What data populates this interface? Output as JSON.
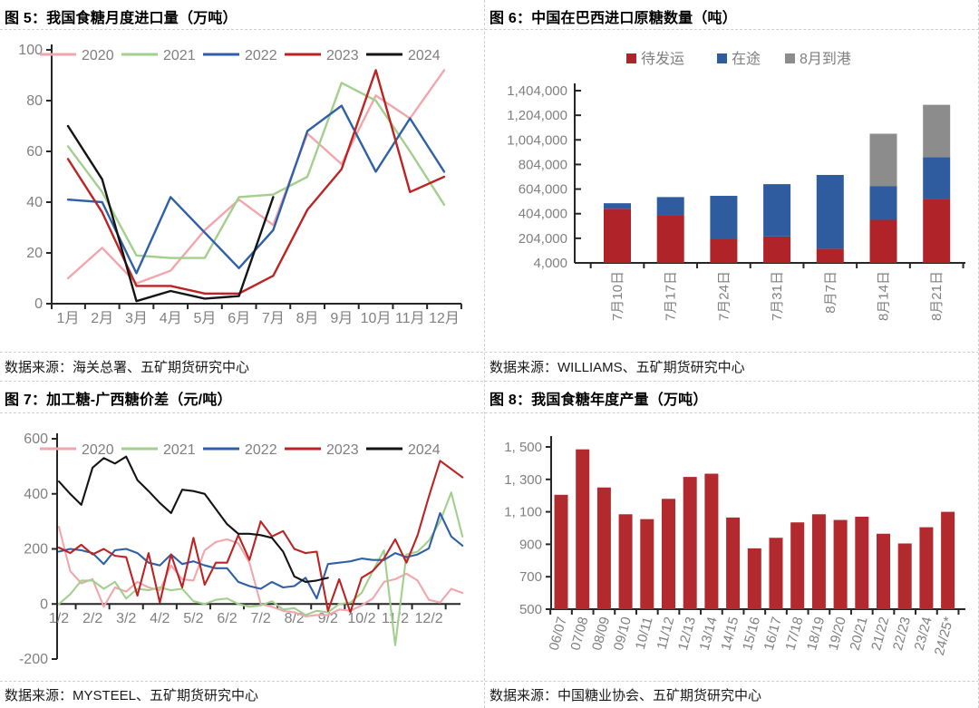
{
  "chart_data": [
    {
      "id": "fig5",
      "type": "line",
      "title": "图 5：我国食糖月度进口量（万吨）",
      "source": "数据来源：海关总署、五矿期货研究中心",
      "categories": [
        "1月",
        "2月",
        "3月",
        "4月",
        "5月",
        "6月",
        "7月",
        "8月",
        "9月",
        "10月",
        "11月",
        "12月"
      ],
      "ytick_values": [
        0,
        20,
        40,
        60,
        80,
        100
      ],
      "ytick_labels": [
        "0",
        "20",
        "40",
        "60",
        "80",
        "100"
      ],
      "ylim": [
        0,
        100
      ],
      "legend_position": "top",
      "grid": "off",
      "series": [
        {
          "name": "2020",
          "color": "#F2A6AC",
          "values": [
            10,
            22,
            8,
            13,
            29,
            41,
            31,
            67,
            55,
            82,
            73,
            92
          ]
        },
        {
          "name": "2021",
          "color": "#A2CF8E",
          "values": [
            62,
            44,
            19,
            18,
            18,
            42,
            43,
            50,
            87,
            80,
            60,
            39
          ]
        },
        {
          "name": "2022",
          "color": "#2F5FA7",
          "values": [
            41,
            40,
            12,
            42,
            28,
            14,
            29,
            68,
            78,
            52,
            73,
            52
          ]
        },
        {
          "name": "2023",
          "color": "#BB2423",
          "values": [
            57,
            36,
            7,
            7,
            4,
            4,
            11,
            37,
            53,
            92,
            44,
            50
          ]
        },
        {
          "name": "2024",
          "color": "#141414",
          "values": [
            70,
            49,
            1,
            5,
            2,
            3,
            42
          ]
        }
      ]
    },
    {
      "id": "fig6",
      "type": "stacked-bar",
      "title": "图 6：中国在巴西进口原糖数量（吨）",
      "source": "数据来源：WILLIAMS、五矿期货研究中心",
      "categories": [
        "7月10日",
        "7月17日",
        "7月24日",
        "7月31日",
        "8月7日",
        "8月14日",
        "8月21日"
      ],
      "ytick_values": [
        4000,
        204000,
        404000,
        604000,
        804000,
        1004000,
        1204000,
        1404000
      ],
      "ytick_labels": [
        "4,000",
        "204,000",
        "404,000",
        "604,000",
        "804,000",
        "1,004,000",
        "1,204,000",
        "1,404,000"
      ],
      "ylim": [
        4000,
        1404000
      ],
      "legend_position": "top",
      "grid": "off",
      "series": [
        {
          "name": "待发运",
          "color": "#B02328",
          "values": [
            440000,
            390000,
            195000,
            215000,
            115000,
            350000,
            520000
          ]
        },
        {
          "name": "在途",
          "color": "#2F5B9F",
          "values": [
            45000,
            145000,
            350000,
            425000,
            600000,
            275000,
            340000
          ]
        },
        {
          "name": "8月到港",
          "color": "#8C8C8C",
          "values": [
            0,
            0,
            0,
            0,
            0,
            425000,
            425000
          ]
        }
      ]
    },
    {
      "id": "fig7",
      "type": "line",
      "title": "图 7：加工糖-广西糖价差（元/吨）",
      "source": "数据来源：MYSTEEL、五矿期货研究中心",
      "categories": [
        "1/2",
        "2/2",
        "3/2",
        "4/2",
        "5/2",
        "6/2",
        "7/2",
        "8/2",
        "9/2",
        "10/2",
        "11/2",
        "12/2"
      ],
      "ytick_values": [
        -200,
        0,
        200,
        400,
        600
      ],
      "ytick_labels": [
        "-200",
        "0",
        "200",
        "400",
        "600"
      ],
      "ylim": [
        -200,
        600
      ],
      "points_per_month": 3,
      "legend_position": "top",
      "grid": "off",
      "series": [
        {
          "name": "2020",
          "color": "#F2A6AC",
          "values": [
            280,
            120,
            75,
            90,
            -10,
            60,
            45,
            80,
            60,
            50,
            140,
            90,
            85,
            195,
            225,
            235,
            220,
            150,
            0,
            -10,
            -25,
            -30,
            -45,
            -40,
            -40,
            -20,
            -25,
            -5,
            20,
            80,
            90,
            110,
            85,
            15,
            5,
            55,
            40
          ]
        },
        {
          "name": "2021",
          "color": "#A2CF8E",
          "values": [
            0,
            35,
            85,
            85,
            55,
            80,
            20,
            55,
            50,
            60,
            50,
            55,
            10,
            0,
            15,
            20,
            0,
            -10,
            -5,
            10,
            -20,
            -15,
            -40,
            -25,
            -30,
            0,
            5,
            40,
            120,
            195,
            -150,
            180,
            190,
            230,
            300,
            405,
            245
          ]
        },
        {
          "name": "2022",
          "color": "#2F5FA7",
          "values": [
            190,
            200,
            195,
            185,
            145,
            195,
            200,
            185,
            150,
            140,
            180,
            145,
            155,
            140,
            130,
            130,
            80,
            65,
            55,
            80,
            60,
            65,
            95,
            20,
            145,
            150,
            155,
            165,
            160,
            160,
            185,
            170,
            180,
            202,
            330,
            245,
            212
          ]
        },
        {
          "name": "2023",
          "color": "#BB2423",
          "values": [
            205,
            185,
            215,
            180,
            200,
            175,
            170,
            30,
            185,
            5,
            180,
            60,
            240,
            70,
            150,
            150,
            250,
            160,
            300,
            245,
            265,
            200,
            185,
            190,
            -25,
            90,
            -30,
            95,
            120,
            165,
            235,
            150,
            250,
            390,
            520,
            490,
            460
          ]
        },
        {
          "name": "2024",
          "color": "#141414",
          "values": [
            445,
            400,
            360,
            495,
            530,
            510,
            535,
            450,
            410,
            367,
            330,
            415,
            410,
            400,
            345,
            290,
            255,
            255,
            250,
            240,
            190,
            100,
            80,
            85,
            95
          ]
        }
      ]
    },
    {
      "id": "fig8",
      "type": "bar",
      "title": "图 8：我国食糖年度产量（万吨）",
      "source": "数据来源：中国糖业协会、五矿期货研究中心",
      "categories": [
        "06/07",
        "07/08",
        "08/09",
        "09/10",
        "10/11",
        "11/12",
        "12/13",
        "13/14",
        "14/15",
        "15/16",
        "16/17",
        "17/18",
        "18/19",
        "19/20",
        "20/21",
        "21/22",
        "22/23",
        "23/24",
        "24/25*"
      ],
      "ytick_values": [
        500,
        700,
        900,
        1100,
        1300,
        1500
      ],
      "ytick_labels": [
        "500",
        "700",
        "900",
        "1, 100",
        "1, 300",
        "1, 500"
      ],
      "ylim": [
        500,
        1500
      ],
      "bar_color": "#B22A2E",
      "grid": "off",
      "values": [
        1205,
        1485,
        1250,
        1085,
        1055,
        1180,
        1315,
        1335,
        1065,
        875,
        940,
        1035,
        1085,
        1050,
        1070,
        965,
        905,
        1005,
        1100
      ]
    }
  ],
  "style": {
    "axis_color": "#262626",
    "tick_label_color": "#808080",
    "legend_text_color": "#7f7f7f",
    "divider_color": "#cfcfcf"
  }
}
